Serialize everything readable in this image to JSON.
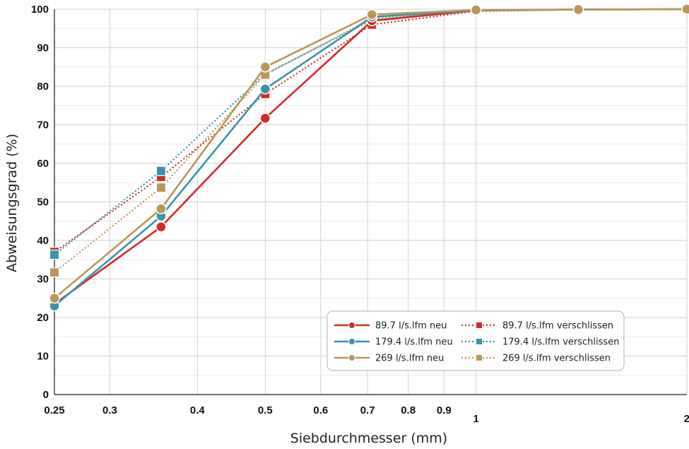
{
  "chart_data": {
    "type": "line",
    "title": "",
    "xlabel": "Siebdurchmesser (mm)",
    "ylabel": "Abweisungsgrad (%)",
    "x_scale": "log",
    "xlim": [
      0.25,
      2
    ],
    "ylim": [
      0,
      100
    ],
    "grid": true,
    "legend_position": "lower-right",
    "x_ticks": [
      {
        "value": 0.25,
        "label": "0.25"
      },
      {
        "value": 0.3,
        "label": "0.3"
      },
      {
        "value": 0.4,
        "label": "0.4"
      },
      {
        "value": 0.5,
        "label": "0.5"
      },
      {
        "value": 0.6,
        "label": "0.6"
      },
      {
        "value": 0.7,
        "label": "0.7"
      },
      {
        "value": 0.8,
        "label": "0.8"
      },
      {
        "value": 0.9,
        "label": "0.9"
      },
      {
        "value": 1,
        "label": "1"
      },
      {
        "value": 2,
        "label": "2"
      }
    ],
    "y_ticks": [
      0,
      10,
      20,
      30,
      40,
      50,
      60,
      70,
      80,
      90,
      100
    ],
    "series": [
      {
        "name": "89.7 l/s.lfm neu",
        "color": "#d42a2a",
        "dash": "solid",
        "marker": "circle",
        "x": [
          0.25,
          0.355,
          0.5,
          0.71,
          1,
          1.4,
          2
        ],
        "y": [
          23.5,
          43.5,
          71.7,
          97,
          99.7,
          99.9,
          100
        ]
      },
      {
        "name": "179.4 l/s.lfm neu",
        "color": "#3a93a8",
        "dash": "solid",
        "marker": "circle",
        "x": [
          0.25,
          0.355,
          0.5,
          0.71,
          1,
          1.4,
          2
        ],
        "y": [
          23,
          46.3,
          79.3,
          98,
          99.7,
          99.9,
          100
        ]
      },
      {
        "name": "269 l/s.lfm neu",
        "color": "#b9975b",
        "dash": "solid",
        "marker": "circle",
        "x": [
          0.25,
          0.355,
          0.5,
          0.71,
          1,
          1.4,
          2
        ],
        "y": [
          25,
          48.2,
          85,
          98.6,
          99.8,
          99.9,
          100
        ]
      },
      {
        "name": "89.7 l/s.lfm verschlissen",
        "color": "#d42a2a",
        "dash": "dotted",
        "marker": "square",
        "x": [
          0.25,
          0.355,
          0.5,
          0.71,
          1,
          1.4,
          2
        ],
        "y": [
          37,
          56.5,
          78,
          96,
          99.5,
          99.9,
          100
        ]
      },
      {
        "name": "179.4 l/s.lfm verschlissen",
        "color": "#3a93a8",
        "dash": "dotted",
        "marker": "square",
        "x": [
          0.25,
          0.355,
          0.5,
          0.71,
          1,
          1.4,
          2
        ],
        "y": [
          36.3,
          58,
          83.2,
          97.2,
          99.6,
          99.9,
          100
        ]
      },
      {
        "name": "269 l/s.lfm verschlissen",
        "color": "#b9975b",
        "dash": "dotted",
        "marker": "square",
        "x": [
          0.25,
          0.355,
          0.5,
          0.71,
          1,
          1.4,
          2
        ],
        "y": [
          31.7,
          53.7,
          83,
          97.6,
          99.7,
          99.9,
          100
        ]
      }
    ]
  }
}
